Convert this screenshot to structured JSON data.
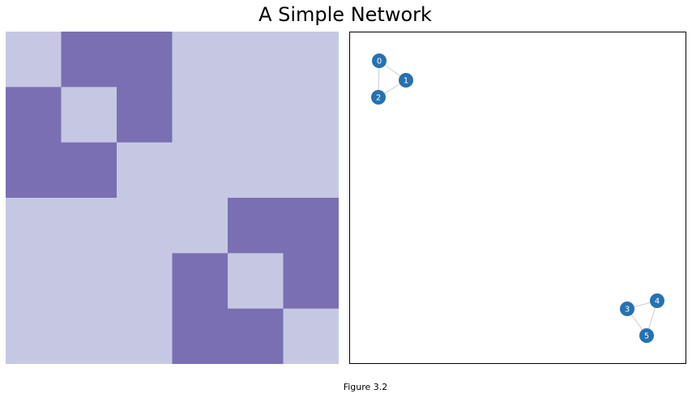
{
  "title": "A Simple Network",
  "caption": "Figure 3.2",
  "colors": {
    "cell_zero": "#c6c8e3",
    "cell_one": "#7a6fb2",
    "node_fill": "#2671b1",
    "edge": "#cccccc"
  },
  "chart_data": [
    {
      "type": "heatmap",
      "rows": 6,
      "cols": 6,
      "matrix": [
        [
          0,
          1,
          1,
          0,
          0,
          0
        ],
        [
          1,
          0,
          1,
          0,
          0,
          0
        ],
        [
          1,
          1,
          0,
          0,
          0,
          0
        ],
        [
          0,
          0,
          0,
          0,
          1,
          1
        ],
        [
          0,
          0,
          0,
          1,
          0,
          1
        ],
        [
          0,
          0,
          0,
          1,
          1,
          0
        ]
      ],
      "grid": false
    },
    {
      "type": "network",
      "nodes": [
        {
          "id": "0",
          "label": "0"
        },
        {
          "id": "1",
          "label": "1"
        },
        {
          "id": "2",
          "label": "2"
        },
        {
          "id": "3",
          "label": "3"
        },
        {
          "id": "4",
          "label": "4"
        },
        {
          "id": "5",
          "label": "5"
        }
      ],
      "edges": [
        [
          "0",
          "1"
        ],
        [
          "0",
          "2"
        ],
        [
          "1",
          "2"
        ],
        [
          "3",
          "4"
        ],
        [
          "3",
          "5"
        ],
        [
          "4",
          "5"
        ]
      ]
    }
  ]
}
